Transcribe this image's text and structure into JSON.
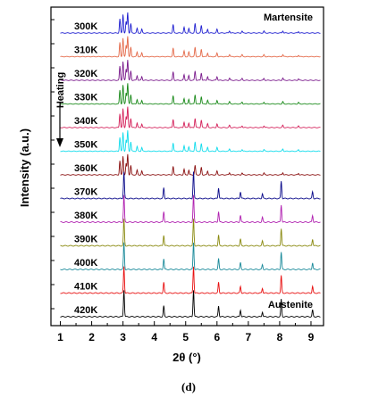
{
  "chart_data": {
    "type": "line",
    "xlabel": "2θ (°)",
    "ylabel": "Intensity (a.u.)",
    "xlim": [
      0.7,
      9.4
    ],
    "xticks": [
      1,
      2,
      3,
      4,
      5,
      6,
      7,
      8,
      9
    ],
    "x_tick_labels": [
      "1",
      "2",
      "3",
      "4",
      "5",
      "6",
      "7",
      "8",
      "9"
    ],
    "panel_label": "(d)",
    "annotations": {
      "heating": "Heating",
      "martensite": "Martensite",
      "austenite": "Austenite"
    },
    "series": [
      {
        "name": "300K",
        "color": "#1f1fd0",
        "phase": "martensite"
      },
      {
        "name": "310K",
        "color": "#e46a4a",
        "phase": "martensite"
      },
      {
        "name": "320K",
        "color": "#7a1a8c",
        "phase": "martensite"
      },
      {
        "name": "330K",
        "color": "#1a8a1a",
        "phase": "martensite"
      },
      {
        "name": "340K",
        "color": "#d4215a",
        "phase": "martensite"
      },
      {
        "name": "350K",
        "color": "#10dcec",
        "phase": "martensite"
      },
      {
        "name": "360K",
        "color": "#8a1010",
        "phase": "martensite"
      },
      {
        "name": "370K",
        "color": "#0a0a8a",
        "phase": "austenite"
      },
      {
        "name": "380K",
        "color": "#b020b0",
        "phase": "austenite"
      },
      {
        "name": "390K",
        "color": "#8a8a10",
        "phase": "austenite"
      },
      {
        "name": "400K",
        "color": "#1a8a9a",
        "phase": "austenite"
      },
      {
        "name": "410K",
        "color": "#e81010",
        "phase": "austenite"
      },
      {
        "name": "420K",
        "color": "#000000",
        "phase": "austenite"
      }
    ],
    "peaks": {
      "martensite": [
        {
          "x": 2.9,
          "h": 0.75
        },
        {
          "x": 3.0,
          "h": 1.0
        },
        {
          "x": 3.1,
          "h": 0.6
        },
        {
          "x": 3.15,
          "h": 1.1
        },
        {
          "x": 3.25,
          "h": 0.5
        },
        {
          "x": 3.45,
          "h": 0.25
        },
        {
          "x": 3.6,
          "h": 0.2
        },
        {
          "x": 4.6,
          "h": 0.45
        },
        {
          "x": 4.95,
          "h": 0.3
        },
        {
          "x": 5.1,
          "h": 0.25
        },
        {
          "x": 5.3,
          "h": 0.5
        },
        {
          "x": 5.5,
          "h": 0.4
        },
        {
          "x": 5.7,
          "h": 0.2
        },
        {
          "x": 6.0,
          "h": 0.2
        },
        {
          "x": 6.4,
          "h": 0.12
        },
        {
          "x": 6.8,
          "h": 0.1
        },
        {
          "x": 7.5,
          "h": 0.1
        },
        {
          "x": 8.1,
          "h": 0.12
        },
        {
          "x": 8.6,
          "h": 0.08
        }
      ],
      "austenite": [
        {
          "x": 3.03,
          "h": 1.0
        },
        {
          "x": 4.3,
          "h": 0.4
        },
        {
          "x": 5.25,
          "h": 1.0
        },
        {
          "x": 6.05,
          "h": 0.4
        },
        {
          "x": 6.75,
          "h": 0.25
        },
        {
          "x": 7.45,
          "h": 0.18
        },
        {
          "x": 8.05,
          "h": 0.65
        },
        {
          "x": 9.05,
          "h": 0.25
        }
      ]
    }
  }
}
